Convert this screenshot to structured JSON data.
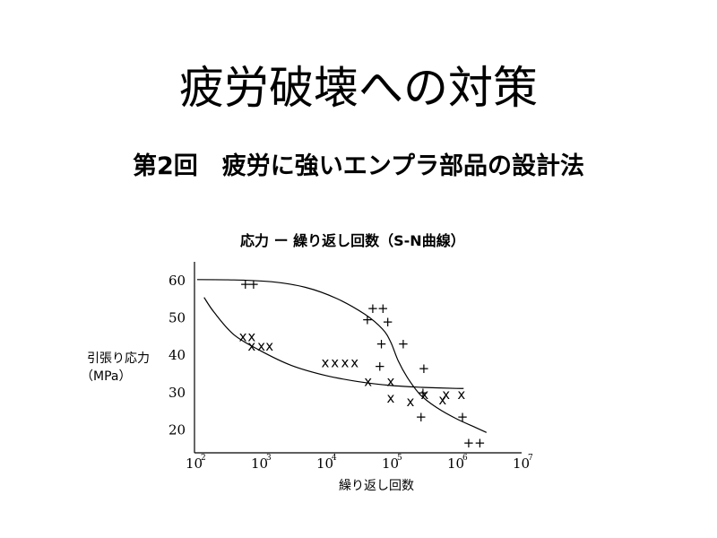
{
  "slide": {
    "title": "疲労破壊への対策",
    "subtitle": "第2回　疲労に強いエンプラ部品の設計法"
  },
  "chart_data": {
    "type": "scatter",
    "title": "応力 ー 繰り返し回数（S-N曲線）",
    "xlabel": "繰り返し回数",
    "ylabel": "引張り応力",
    "ylabel_unit": "（MPa）",
    "x_scale": "log",
    "x_ticks": [
      {
        "base": "10",
        "exp": "2",
        "value": 100
      },
      {
        "base": "10",
        "exp": "3",
        "value": 1000
      },
      {
        "base": "10",
        "exp": "4",
        "value": 10000
      },
      {
        "base": "10",
        "exp": "5",
        "value": 100000
      },
      {
        "base": "10",
        "exp": "6",
        "value": 1000000
      },
      {
        "base": "10",
        "exp": "7",
        "value": 10000000
      }
    ],
    "y_ticks": [
      "60",
      "50",
      "40",
      "30",
      "20"
    ],
    "xlim": [
      100,
      10000000
    ],
    "ylim": [
      17,
      62
    ],
    "grid": false,
    "series": [
      {
        "marker": "+",
        "points": [
          [
            600,
            59
          ],
          [
            800,
            59
          ],
          [
            44000,
            49.5
          ],
          [
            53000,
            52.5
          ],
          [
            76000,
            52.5
          ],
          [
            90000,
            49
          ],
          [
            72000,
            43
          ],
          [
            155000,
            43
          ],
          [
            68000,
            37
          ],
          [
            320000,
            36.5
          ],
          [
            310000,
            30
          ],
          [
            290000,
            23.5
          ],
          [
            1250000,
            23.5
          ],
          [
            1550000,
            16.5
          ],
          [
            2300000,
            16.5
          ]
        ],
        "curve": [
          [
            110,
            60.3
          ],
          [
            400,
            60.2
          ],
          [
            1500,
            59.7
          ],
          [
            5000,
            58.2
          ],
          [
            15000,
            55.2
          ],
          [
            40000,
            51
          ],
          [
            75000,
            47
          ],
          [
            100000,
            43.5
          ],
          [
            130000,
            38.5
          ],
          [
            180000,
            34
          ],
          [
            280000,
            29.5
          ],
          [
            500000,
            26
          ],
          [
            1000000,
            23
          ],
          [
            2000000,
            20.6
          ],
          [
            2900000,
            19.3
          ]
        ]
      },
      {
        "marker": "x",
        "points": [
          [
            550,
            45
          ],
          [
            750,
            45
          ],
          [
            750,
            42.5
          ],
          [
            1050,
            42.5
          ],
          [
            1400,
            42.5
          ],
          [
            10000,
            38
          ],
          [
            14000,
            38
          ],
          [
            20000,
            38
          ],
          [
            28000,
            38
          ],
          [
            45000,
            33
          ],
          [
            100000,
            33
          ],
          [
            100000,
            28.5
          ],
          [
            200000,
            27.5
          ],
          [
            330000,
            29.5
          ],
          [
            620000,
            28
          ],
          [
            700000,
            29.5
          ],
          [
            1200000,
            29.5
          ]
        ],
        "curve": [
          [
            140,
            55.5
          ],
          [
            200,
            51.5
          ],
          [
            400,
            45.5
          ],
          [
            1000,
            41.3
          ],
          [
            3000,
            37.3
          ],
          [
            10000,
            34.6
          ],
          [
            30000,
            33
          ],
          [
            100000,
            31.9
          ],
          [
            300000,
            31.4
          ],
          [
            1000000,
            31.1
          ],
          [
            1300000,
            31.1
          ]
        ]
      }
    ]
  }
}
